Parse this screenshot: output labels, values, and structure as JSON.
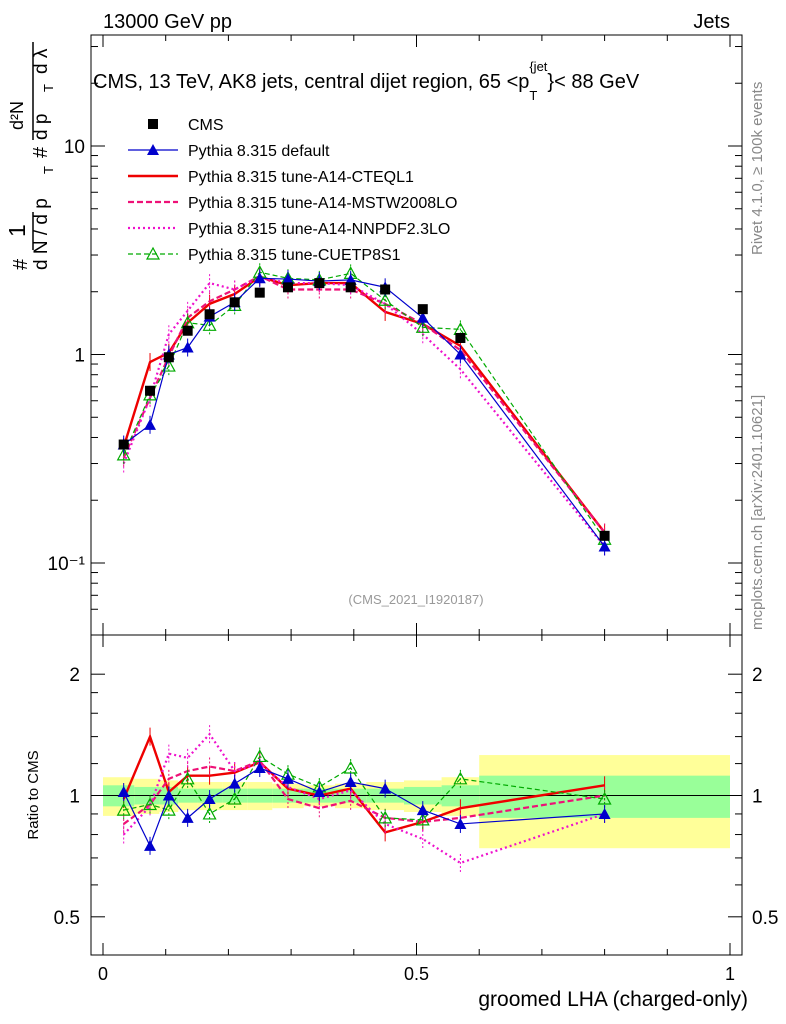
{
  "header": {
    "left": "13000 GeV pp",
    "right": "Jets"
  },
  "plot_title": "CMS, 13 TeV, AK8 jets, central dijet region, 65 <p",
  "plot_title_sub": "T",
  "plot_title_sup": "{jet",
  "plot_title_end": "}< 88 GeV",
  "ylabel_main": {
    "hash1": "#",
    "one": "1",
    "dN": "d N / d p",
    "T": "T",
    "hash2": "#",
    "d2N": "d²N",
    "dpT": "d p",
    "dlambda": "d λ"
  },
  "ylabel_ratio": "Ratio to CMS",
  "xlabel": "groomed LHA (charged-only)",
  "side_text_top": "Rivet 4.1.0, ≥ 100k events",
  "side_text_bottom": "mcplots.cern.ch [arXiv:2401.10621]",
  "analysis_id": "(CMS_2021_I1920187)",
  "colors": {
    "cms": "#000000",
    "default": "#0000cc",
    "cteql1": "#ee0000",
    "mstw": "#ee1177",
    "nnpdf": "#ee11cc",
    "cuetp8s1": "#00aa00",
    "band_yellow": "#ffff99",
    "band_green": "#99ff99"
  },
  "chart_data": {
    "type": "line",
    "x": [
      0.033,
      0.075,
      0.105,
      0.135,
      0.17,
      0.21,
      0.25,
      0.295,
      0.345,
      0.395,
      0.45,
      0.51,
      0.57,
      0.8
    ],
    "x_bin_edges": [
      0.0,
      0.05,
      0.09,
      0.12,
      0.15,
      0.19,
      0.23,
      0.27,
      0.32,
      0.37,
      0.42,
      0.48,
      0.54,
      0.6,
      1.0
    ],
    "xlim": [
      0,
      1
    ],
    "xticks": [
      "0",
      "0.5",
      "1"
    ],
    "main": {
      "yscale": "log",
      "ylim": [
        0.05,
        40
      ],
      "yticks": [
        "10⁻¹",
        "1",
        "10"
      ]
    },
    "ratio": {
      "ylim": [
        0.4,
        2.4
      ],
      "yticks": [
        "0.5",
        "1",
        "2"
      ]
    },
    "series": [
      {
        "name": "CMS",
        "key": "cms",
        "values": [
          0.37,
          0.67,
          0.97,
          1.3,
          1.56,
          1.78,
          1.98,
          2.1,
          2.2,
          2.1,
          2.05,
          1.65,
          1.2,
          0.135
        ],
        "ratio": [
          1,
          1,
          1,
          1,
          1,
          1,
          1,
          1,
          1,
          1,
          1,
          1,
          1,
          1
        ]
      },
      {
        "name": "Pythia 8.315 default",
        "key": "default",
        "values": [
          0.37,
          0.46,
          1.0,
          1.08,
          1.52,
          1.78,
          2.32,
          2.3,
          2.25,
          2.28,
          2.1,
          1.5,
          1.0,
          0.12
        ],
        "ratio": [
          1.02,
          0.75,
          1.0,
          0.88,
          0.98,
          1.07,
          1.17,
          1.1,
          1.02,
          1.08,
          1.04,
          0.92,
          0.85,
          0.9
        ]
      },
      {
        "name": "Pythia 8.315 tune-A14-CTEQL1",
        "key": "cteql1",
        "values": [
          0.36,
          0.92,
          1.02,
          1.42,
          1.75,
          1.95,
          2.36,
          2.15,
          2.2,
          2.2,
          1.6,
          1.4,
          1.1,
          0.14
        ],
        "ratio": [
          0.98,
          1.4,
          1.02,
          1.12,
          1.12,
          1.14,
          1.21,
          1.04,
          1.0,
          1.04,
          0.81,
          0.86,
          0.93,
          1.06
        ]
      },
      {
        "name": "Pythia 8.315 tune-A14-MSTW2008LO",
        "key": "mstw",
        "values": [
          0.32,
          0.62,
          0.98,
          1.5,
          1.8,
          2.05,
          2.38,
          2.05,
          2.05,
          2.05,
          1.75,
          1.4,
          1.05,
          0.14
        ],
        "ratio": [
          0.85,
          0.95,
          1.1,
          1.15,
          1.18,
          1.15,
          1.22,
          0.98,
          0.93,
          0.97,
          0.88,
          0.86,
          0.88,
          1.0
        ]
      },
      {
        "name": "Pythia 8.315 tune-A14-NNPDF2.3LO",
        "key": "nnpdf",
        "values": [
          0.3,
          0.62,
          1.25,
          1.62,
          2.2,
          2.05,
          2.35,
          2.2,
          2.2,
          2.15,
          1.75,
          1.25,
          0.85,
          0.12
        ],
        "ratio": [
          0.8,
          0.94,
          1.27,
          1.24,
          1.42,
          1.15,
          1.2,
          1.05,
          0.98,
          1.03,
          0.85,
          0.78,
          0.68,
          0.9
        ]
      },
      {
        "name": "Pythia 8.315 tune-CUETP8S1",
        "key": "cuetp8s1",
        "values": [
          0.33,
          0.64,
          0.88,
          1.42,
          1.38,
          1.72,
          2.48,
          2.32,
          2.28,
          2.45,
          1.82,
          1.35,
          1.32,
          0.13
        ],
        "ratio": [
          0.92,
          0.95,
          0.92,
          1.1,
          0.9,
          0.98,
          1.25,
          1.13,
          1.05,
          1.17,
          0.88,
          0.87,
          1.1,
          0.98
        ]
      }
    ],
    "uncertainty_band_ratio": {
      "green_half_width": [
        0.06,
        0.05,
        0.05,
        0.04,
        0.04,
        0.04,
        0.04,
        0.04,
        0.04,
        0.04,
        0.04,
        0.05,
        0.06,
        0.12
      ],
      "yellow_half_width": [
        0.11,
        0.1,
        0.09,
        0.08,
        0.08,
        0.08,
        0.08,
        0.07,
        0.06,
        0.07,
        0.08,
        0.09,
        0.11,
        0.26
      ]
    }
  }
}
